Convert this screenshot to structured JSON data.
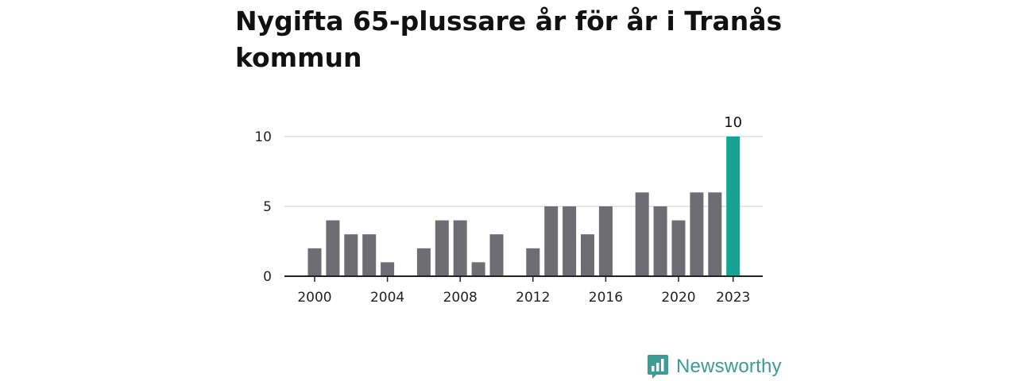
{
  "title": "Nygifta 65-plussare år för år i Tranås kommun",
  "brand": {
    "name": "Newsworthy"
  },
  "colors": {
    "bar": "#6e6d73",
    "highlight": "#16a393",
    "grid": "#dddddd",
    "axis": "#222222",
    "brand": "#3a9c93"
  },
  "chart_data": {
    "type": "bar",
    "title": "Nygifta 65-plussare år för år i Tranås kommun",
    "xlabel": "",
    "ylabel": "",
    "x": [
      2000,
      2001,
      2002,
      2003,
      2004,
      2005,
      2006,
      2007,
      2008,
      2009,
      2010,
      2011,
      2012,
      2013,
      2014,
      2015,
      2016,
      2017,
      2018,
      2019,
      2020,
      2021,
      2022,
      2023
    ],
    "values": [
      2,
      4,
      3,
      3,
      1,
      0,
      2,
      4,
      4,
      1,
      3,
      0,
      2,
      5,
      5,
      3,
      5,
      0,
      6,
      5,
      4,
      6,
      6,
      10
    ],
    "x_ticks": [
      "2000",
      "2004",
      "2008",
      "2012",
      "2016",
      "2020",
      "2023"
    ],
    "y_ticks": [
      0,
      5,
      10
    ],
    "ylim": [
      0,
      10
    ],
    "highlight": {
      "x": 2023,
      "label": "10"
    },
    "grid": "horizontal",
    "legend": "none"
  }
}
